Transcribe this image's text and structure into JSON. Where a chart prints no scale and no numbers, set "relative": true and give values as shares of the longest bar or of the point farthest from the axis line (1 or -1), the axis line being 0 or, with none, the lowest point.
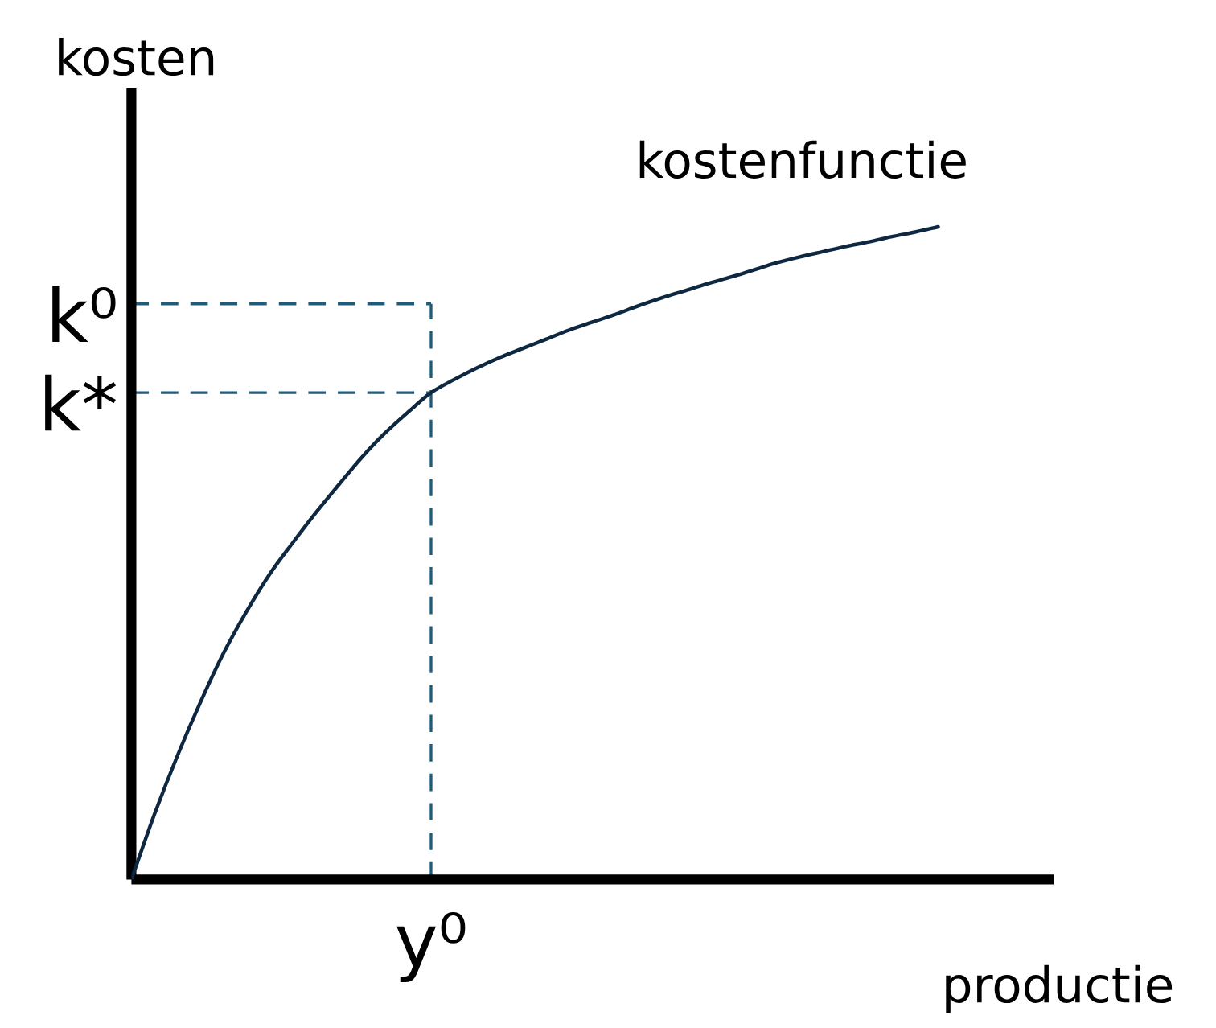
{
  "chart_data": {
    "type": "line",
    "relative": true,
    "xlabel": "productie",
    "ylabel": "kosten",
    "categories": [
      null,
      null,
      null,
      null,
      null,
      null,
      null,
      null,
      null,
      null,
      null,
      null,
      null,
      null,
      null,
      null,
      null,
      null,
      null,
      null,
      null,
      null,
      null,
      null,
      null,
      null,
      null,
      null,
      null,
      null,
      null,
      null,
      null,
      null,
      null,
      null
    ],
    "series": [
      {
        "name": "kostenfunctie",
        "color": "#0e2841",
        "values": [
          0,
          0.1,
          0.19,
          0.272,
          0.347,
          0.411,
          0.468,
          0.516,
          0.562,
          0.605,
          0.647,
          0.684,
          0.716,
          0.746,
          0.766,
          0.784,
          0.8,
          0.814,
          0.828,
          0.842,
          0.854,
          0.866,
          0.879,
          0.891,
          0.902,
          0.913,
          0.923,
          0.934,
          0.945,
          0.954,
          0.962,
          0.97,
          0.977,
          0.985,
          0.992,
          1
        ]
      }
    ],
    "ref_lines": [
      {
        "axis": "y",
        "value": 0.882,
        "label": "k⁰",
        "color": "#1f5c7a",
        "line_style": "dashed"
      },
      {
        "axis": "y",
        "value": 0.746,
        "label": "k*",
        "color": "#1f5c7a",
        "line_style": "dashed"
      }
    ],
    "annotations": [
      "y⁰"
    ]
  }
}
